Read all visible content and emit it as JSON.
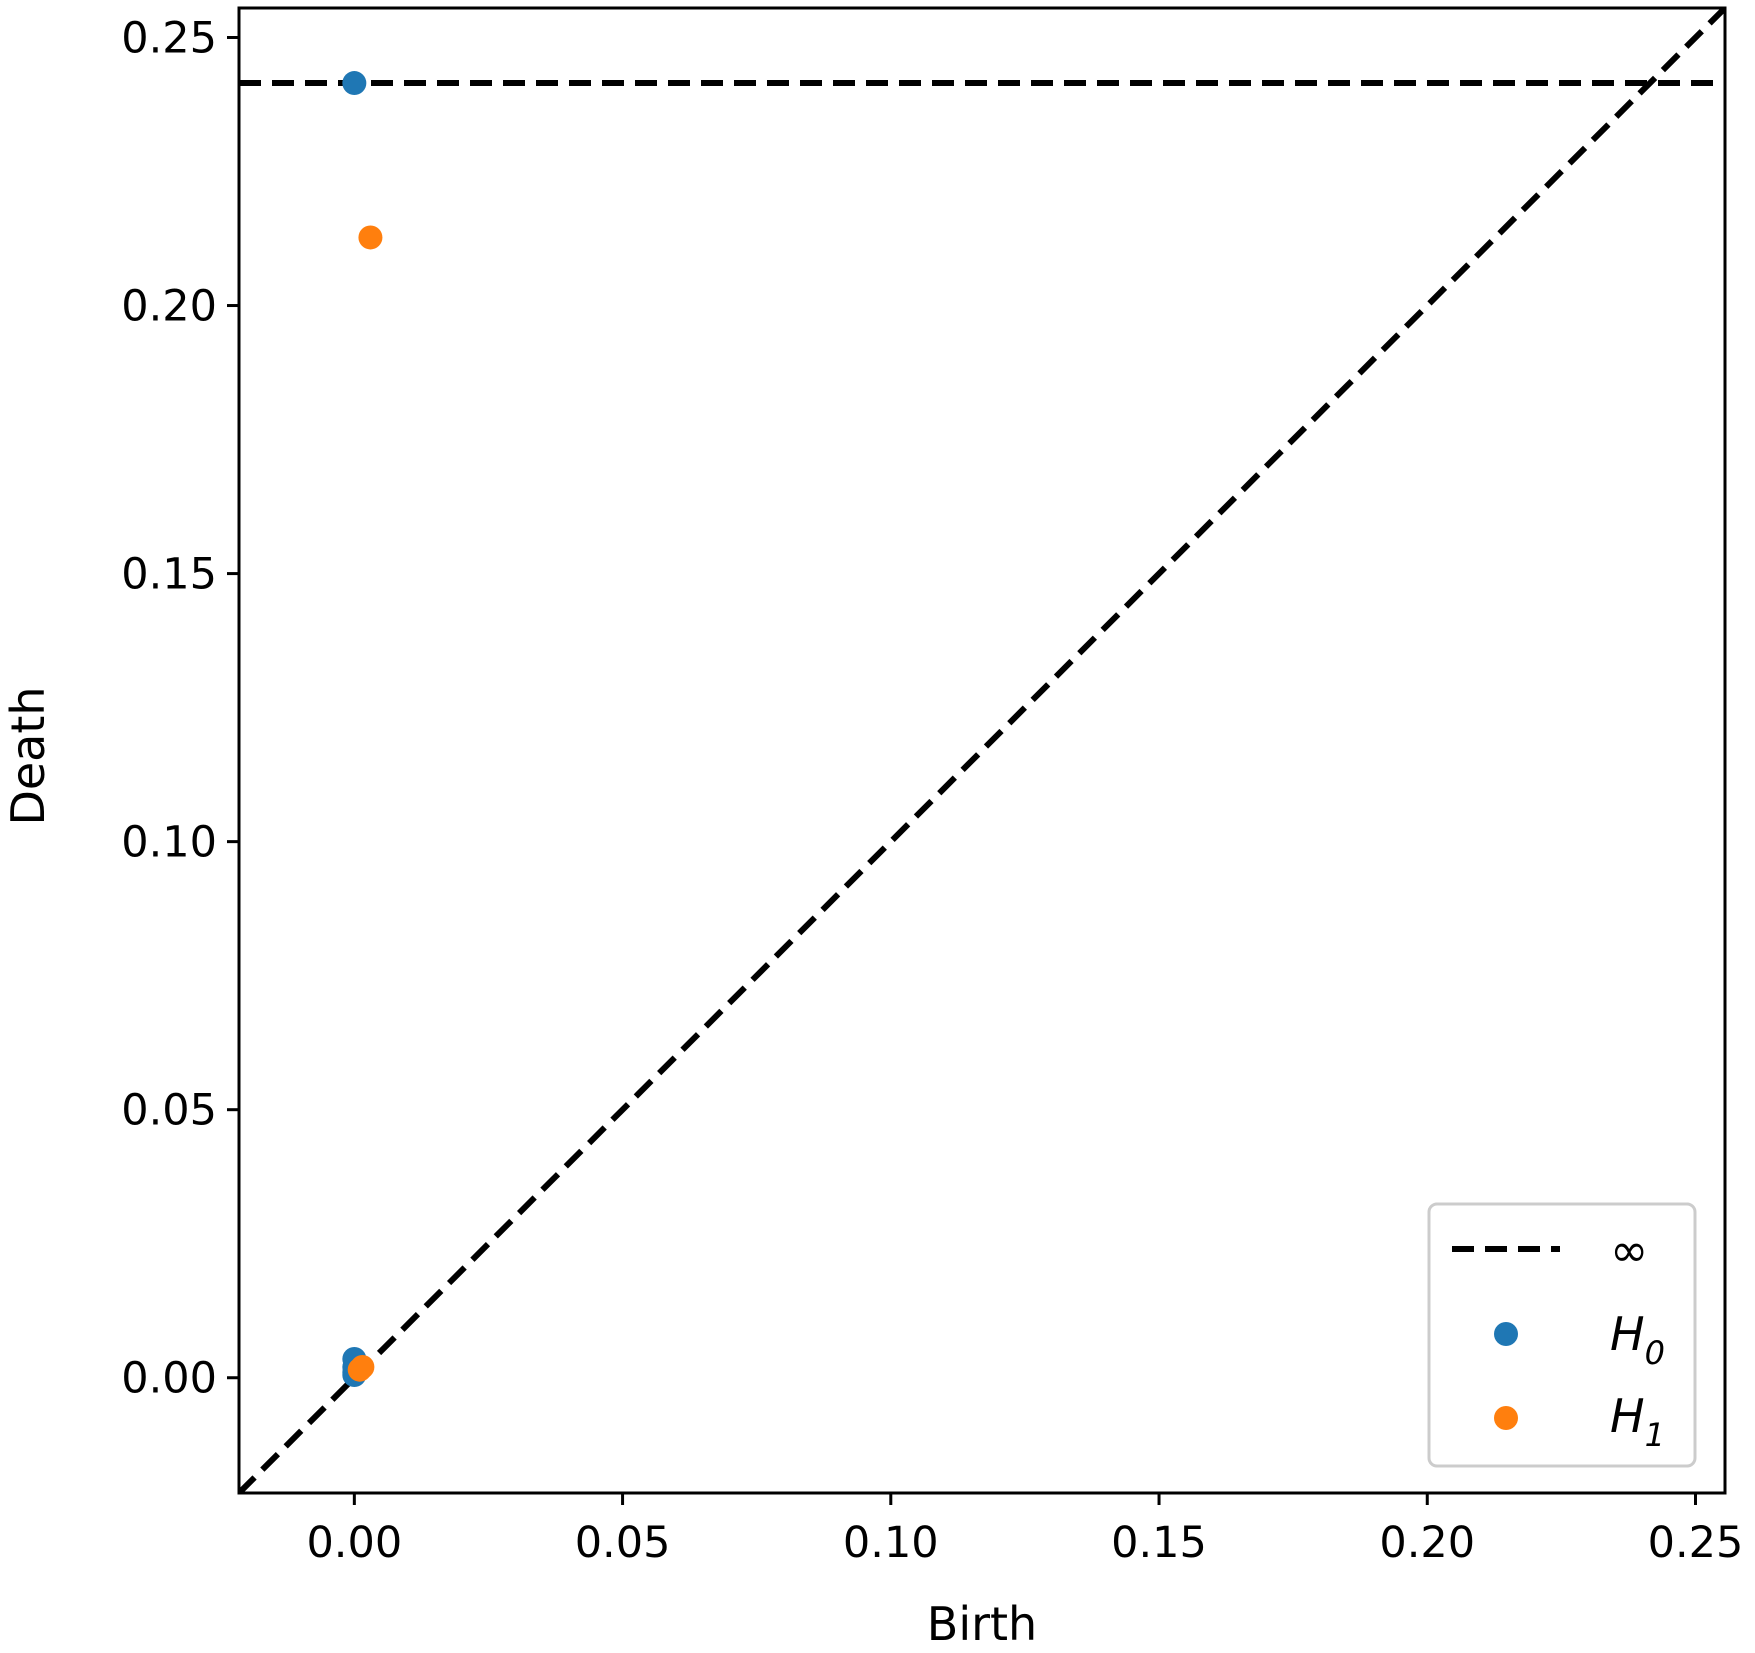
{
  "chart_data": {
    "type": "scatter",
    "xlabel": "Birth",
    "ylabel": "Death",
    "xlim": [
      -0.0215,
      0.2555
    ],
    "ylim": [
      -0.0215,
      0.2555
    ],
    "xticks": [
      0.0,
      0.05,
      0.1,
      0.15,
      0.2,
      0.25
    ],
    "yticks": [
      0.0,
      0.05,
      0.1,
      0.15,
      0.2,
      0.25
    ],
    "xtick_labels": [
      "0.00",
      "0.05",
      "0.10",
      "0.15",
      "0.20",
      "0.25"
    ],
    "ytick_labels": [
      "0.00",
      "0.05",
      "0.10",
      "0.15",
      "0.20",
      "0.25"
    ],
    "infinity_line": {
      "y": 0.2415,
      "label": "∞",
      "style": "dashed",
      "color": "#000000"
    },
    "diagonal": {
      "style": "dashed",
      "color": "#000000"
    },
    "series": [
      {
        "name": "H",
        "subscript": "0",
        "color": "#1f77b4",
        "points": [
          {
            "x": 0.0,
            "y": 0.2415
          },
          {
            "x": 0.0,
            "y": 0.0035
          },
          {
            "x": 0.0,
            "y": 0.002
          },
          {
            "x": 0.0,
            "y": 0.001
          },
          {
            "x": 0.0,
            "y": 0.0005
          }
        ]
      },
      {
        "name": "H",
        "subscript": "1",
        "color": "#ff7f0e",
        "points": [
          {
            "x": 0.003,
            "y": 0.2127
          },
          {
            "x": 0.001,
            "y": 0.0015
          },
          {
            "x": 0.0015,
            "y": 0.002
          }
        ]
      }
    ],
    "grid": false,
    "legend_position": "lower-right"
  }
}
